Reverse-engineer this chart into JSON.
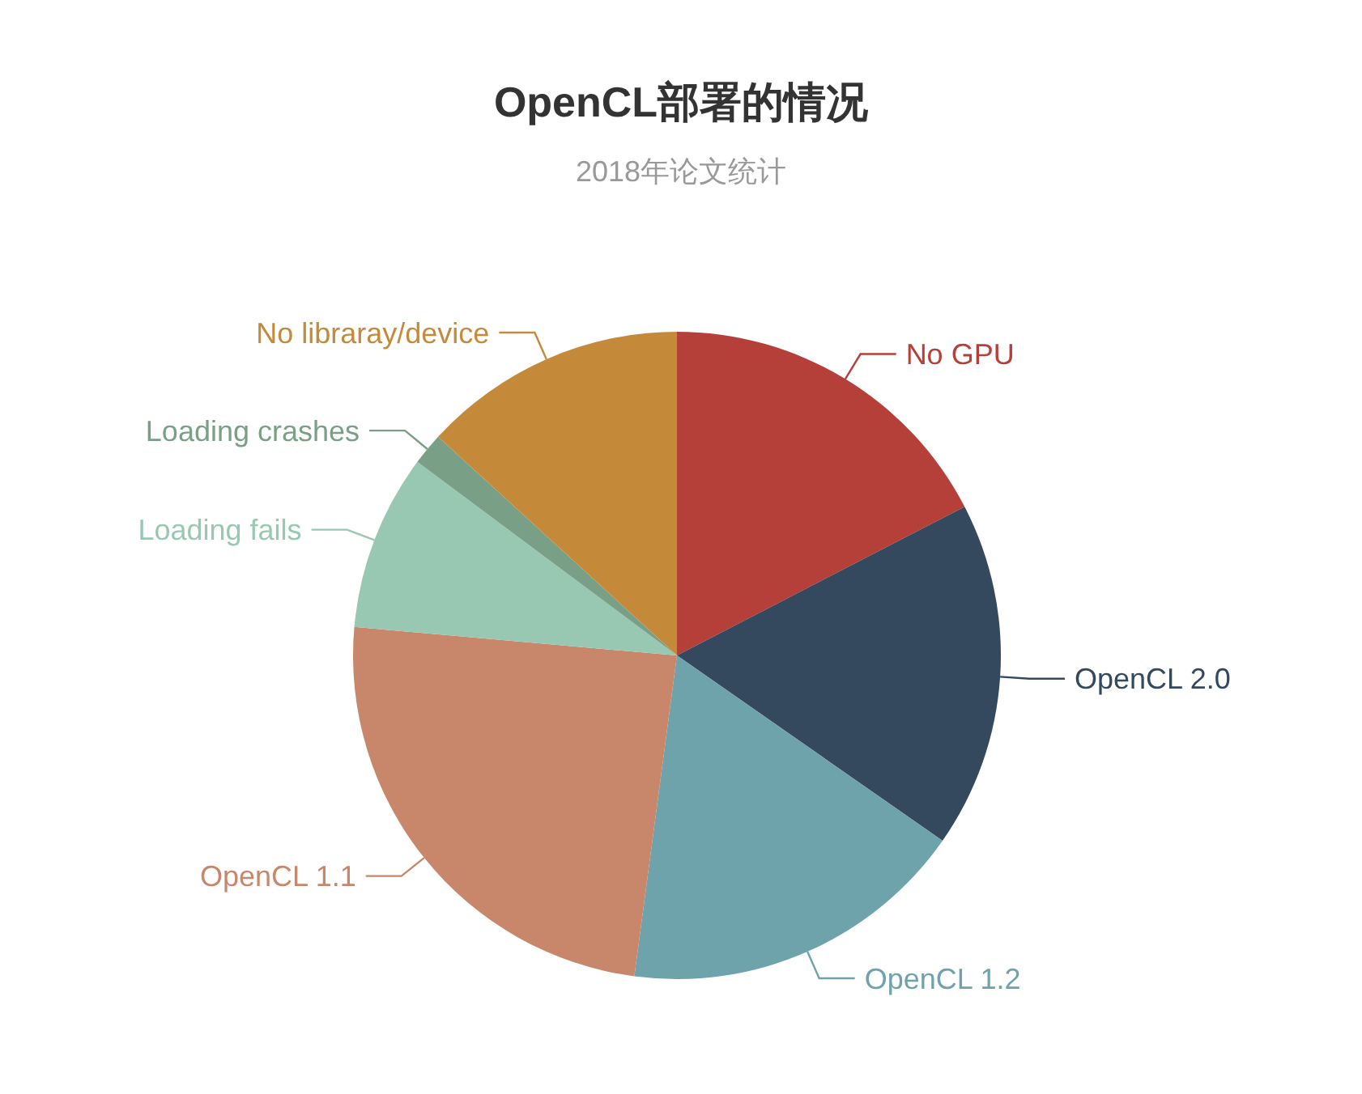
{
  "chart_data": {
    "type": "pie",
    "title": "OpenCL部署的情况",
    "subtitle": "2018年论文统计",
    "categories": [
      "No GPU",
      "OpenCL 2.0",
      "OpenCL 1.2",
      "OpenCL 1.1",
      "Loading fails",
      "Loading crashes",
      "No libraray/device"
    ],
    "values": [
      17.4,
      17.3,
      17.4,
      24.3,
      8.8,
      1.6,
      13.2
    ],
    "colors": [
      "#b5403a",
      "#34495e",
      "#6fa3ab",
      "#c8866a",
      "#98c8b1",
      "#7a9f87",
      "#c48a3a"
    ]
  }
}
